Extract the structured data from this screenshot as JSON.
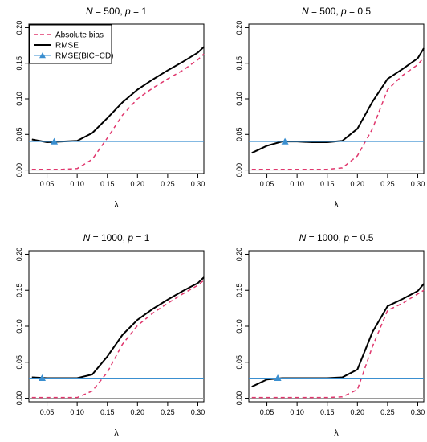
{
  "colors": {
    "bias": "#e0386e",
    "rmse": "#000000",
    "bic": "#3a8fd0",
    "zero_line": "#9a9a9a"
  },
  "chart_data": [
    {
      "type": "line",
      "title": "N = 500, p = 1",
      "xlabel": "λ",
      "ylabel": "",
      "xlim": [
        0.02,
        0.31
      ],
      "ylim": [
        -0.005,
        0.205
      ],
      "x_ticks": [
        0.05,
        0.1,
        0.15,
        0.2,
        0.25,
        0.3
      ],
      "x_tick_labels": [
        "0.05",
        "0.10",
        "0.15",
        "0.20",
        "0.25",
        "0.30"
      ],
      "y_ticks": [
        0.0,
        0.05,
        0.1,
        0.15,
        0.2
      ],
      "y_tick_labels": [
        "0.00",
        "0.05",
        "0.10",
        "0.15",
        "0.20"
      ],
      "legend": {
        "position": "top-left",
        "entries": [
          "Absolute bias",
          "RMSE",
          "RMSE(BIC−CD)"
        ]
      },
      "series": [
        {
          "name": "Absolute bias",
          "style": "dashed",
          "x": [
            0.025,
            0.05,
            0.075,
            0.1,
            0.125,
            0.15,
            0.175,
            0.2,
            0.225,
            0.25,
            0.275,
            0.3,
            0.31
          ],
          "y": [
            0.001,
            0.001,
            0.001,
            0.002,
            0.015,
            0.045,
            0.077,
            0.1,
            0.115,
            0.128,
            0.14,
            0.155,
            0.163
          ]
        },
        {
          "name": "RMSE",
          "style": "solid",
          "x": [
            0.025,
            0.05,
            0.075,
            0.1,
            0.125,
            0.15,
            0.175,
            0.2,
            0.225,
            0.25,
            0.275,
            0.3,
            0.31
          ],
          "y": [
            0.043,
            0.039,
            0.04,
            0.041,
            0.052,
            0.073,
            0.095,
            0.113,
            0.127,
            0.14,
            0.152,
            0.165,
            0.173
          ]
        },
        {
          "name": "RMSE(BIC−CD)",
          "style": "hline",
          "value": 0.04,
          "marker_x": 0.062
        }
      ]
    },
    {
      "type": "line",
      "title": "N = 500, p = 0.5",
      "xlabel": "λ",
      "ylabel": "",
      "xlim": [
        0.02,
        0.31
      ],
      "ylim": [
        -0.005,
        0.205
      ],
      "x_ticks": [
        0.05,
        0.1,
        0.15,
        0.2,
        0.25,
        0.3
      ],
      "x_tick_labels": [
        "0.05",
        "0.10",
        "0.15",
        "0.20",
        "0.25",
        "0.30"
      ],
      "y_ticks": [
        0.0,
        0.05,
        0.1,
        0.15,
        0.2
      ],
      "y_tick_labels": [
        "0.00",
        "0.05",
        "0.10",
        "0.15",
        "0.20"
      ],
      "series": [
        {
          "name": "Absolute bias",
          "style": "dashed",
          "x": [
            0.025,
            0.05,
            0.075,
            0.1,
            0.125,
            0.15,
            0.175,
            0.2,
            0.225,
            0.25,
            0.275,
            0.3,
            0.31
          ],
          "y": [
            0.001,
            0.001,
            0.001,
            0.001,
            0.001,
            0.001,
            0.003,
            0.02,
            0.058,
            0.113,
            0.133,
            0.148,
            0.158
          ]
        },
        {
          "name": "RMSE",
          "style": "solid",
          "x": [
            0.025,
            0.05,
            0.075,
            0.1,
            0.125,
            0.15,
            0.175,
            0.2,
            0.225,
            0.25,
            0.275,
            0.3,
            0.31
          ],
          "y": [
            0.024,
            0.034,
            0.04,
            0.04,
            0.039,
            0.039,
            0.041,
            0.058,
            0.096,
            0.128,
            0.142,
            0.157,
            0.171
          ]
        },
        {
          "name": "RMSE(BIC−CD)",
          "style": "hline",
          "value": 0.04,
          "marker_x": 0.08
        }
      ]
    },
    {
      "type": "line",
      "title": "N = 1000, p = 1",
      "xlabel": "λ",
      "ylabel": "",
      "xlim": [
        0.02,
        0.31
      ],
      "ylim": [
        -0.005,
        0.205
      ],
      "x_ticks": [
        0.05,
        0.1,
        0.15,
        0.2,
        0.25,
        0.3
      ],
      "x_tick_labels": [
        "0.05",
        "0.10",
        "0.15",
        "0.20",
        "0.25",
        "0.30"
      ],
      "y_ticks": [
        0.0,
        0.05,
        0.1,
        0.15,
        0.2
      ],
      "y_tick_labels": [
        "0.00",
        "0.05",
        "0.10",
        "0.15",
        "0.20"
      ],
      "series": [
        {
          "name": "Absolute bias",
          "style": "dashed",
          "x": [
            0.025,
            0.05,
            0.075,
            0.1,
            0.125,
            0.15,
            0.175,
            0.2,
            0.225,
            0.25,
            0.275,
            0.3,
            0.31
          ],
          "y": [
            0.001,
            0.001,
            0.001,
            0.001,
            0.01,
            0.036,
            0.075,
            0.101,
            0.118,
            0.132,
            0.145,
            0.157,
            0.164
          ]
        },
        {
          "name": "RMSE",
          "style": "solid",
          "x": [
            0.025,
            0.05,
            0.075,
            0.1,
            0.125,
            0.15,
            0.175,
            0.2,
            0.225,
            0.25,
            0.275,
            0.3,
            0.31
          ],
          "y": [
            0.029,
            0.028,
            0.028,
            0.028,
            0.033,
            0.058,
            0.088,
            0.109,
            0.124,
            0.137,
            0.149,
            0.16,
            0.168
          ]
        },
        {
          "name": "RMSE(BIC−CD)",
          "style": "hline",
          "value": 0.028,
          "marker_x": 0.042
        }
      ]
    },
    {
      "type": "line",
      "title": "N = 1000, p = 0.5",
      "xlabel": "λ",
      "ylabel": "",
      "xlim": [
        0.02,
        0.31
      ],
      "ylim": [
        -0.005,
        0.205
      ],
      "x_ticks": [
        0.05,
        0.1,
        0.15,
        0.2,
        0.25,
        0.3
      ],
      "x_tick_labels": [
        "0.05",
        "0.10",
        "0.15",
        "0.20",
        "0.25",
        "0.30"
      ],
      "y_ticks": [
        0.0,
        0.05,
        0.1,
        0.15,
        0.2
      ],
      "y_tick_labels": [
        "0.00",
        "0.05",
        "0.10",
        "0.15",
        "0.20"
      ],
      "series": [
        {
          "name": "Absolute bias",
          "style": "dashed",
          "x": [
            0.025,
            0.05,
            0.075,
            0.1,
            0.125,
            0.15,
            0.175,
            0.2,
            0.225,
            0.25,
            0.275,
            0.3,
            0.31
          ],
          "y": [
            0.001,
            0.001,
            0.001,
            0.001,
            0.001,
            0.001,
            0.002,
            0.012,
            0.072,
            0.122,
            0.132,
            0.145,
            0.15
          ]
        },
        {
          "name": "RMSE",
          "style": "solid",
          "x": [
            0.025,
            0.05,
            0.075,
            0.1,
            0.125,
            0.15,
            0.175,
            0.2,
            0.225,
            0.25,
            0.275,
            0.3,
            0.31
          ],
          "y": [
            0.016,
            0.026,
            0.028,
            0.028,
            0.028,
            0.028,
            0.029,
            0.04,
            0.092,
            0.128,
            0.138,
            0.149,
            0.159
          ]
        },
        {
          "name": "RMSE(BIC−CD)",
          "style": "hline",
          "value": 0.028,
          "marker_x": 0.068
        }
      ]
    }
  ]
}
